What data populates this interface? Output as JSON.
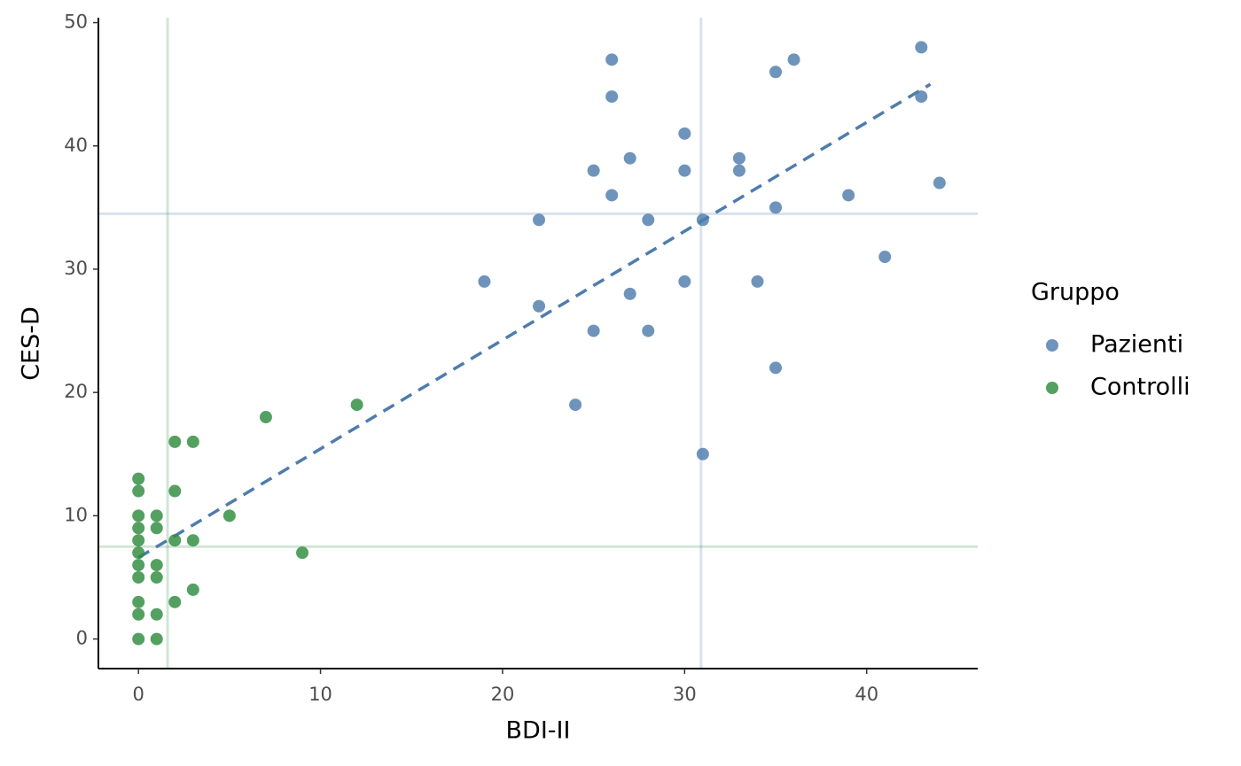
{
  "chart_data": {
    "type": "scatter",
    "x_label": "BDI-II",
    "y_label": "CES-D",
    "legend_title": "Gruppo",
    "xlim": [
      -2.2,
      46.1
    ],
    "ylim": [
      -2.4,
      50.4
    ],
    "xticks": [
      0,
      10,
      20,
      30,
      40
    ],
    "yticks": [
      0,
      10,
      20,
      30,
      40,
      50
    ],
    "legend_position": "right",
    "series": [
      {
        "name": "Pazienti",
        "color": "#4f7cac",
        "x": [
          26,
          26,
          43,
          36,
          35,
          43,
          30,
          27,
          33,
          25,
          30,
          33,
          44,
          26,
          39,
          35,
          22,
          28,
          31,
          41,
          19,
          30,
          34,
          27,
          22,
          25,
          28,
          35,
          24,
          31
        ],
        "values": [
          47,
          44,
          48,
          47,
          46,
          44,
          41,
          39,
          39,
          38,
          38,
          38,
          37,
          36,
          36,
          35,
          34,
          34,
          34,
          31,
          29,
          29,
          29,
          28,
          27,
          25,
          25,
          22,
          19,
          15
        ]
      },
      {
        "name": "Controlli",
        "color": "#2e8b3e",
        "x": [
          12,
          7,
          2,
          3,
          0,
          0,
          2,
          0,
          1,
          5,
          0,
          1,
          0,
          2,
          3,
          9,
          0,
          0,
          1,
          0,
          1,
          3,
          0,
          2,
          0,
          1,
          0,
          1
        ],
        "values": [
          19,
          18,
          16,
          16,
          13,
          12,
          12,
          10,
          10,
          10,
          9,
          9,
          8,
          8,
          8,
          7,
          7,
          6,
          6,
          5,
          5,
          4,
          3,
          3,
          2,
          2,
          0,
          0
        ]
      }
    ],
    "reference_lines": [
      {
        "axis": "x",
        "value": 1.6,
        "color": "#2e8b3e"
      },
      {
        "axis": "x",
        "value": 30.9,
        "color": "#4f7cac"
      },
      {
        "axis": "y",
        "value": 34.5,
        "color": "#4f7cac"
      },
      {
        "axis": "y",
        "value": 7.5,
        "color": "#2e8b3e"
      }
    ],
    "trend_line": {
      "x": [
        0,
        43.5
      ],
      "y": [
        6.6,
        45
      ],
      "color": "#4f7cac"
    }
  }
}
